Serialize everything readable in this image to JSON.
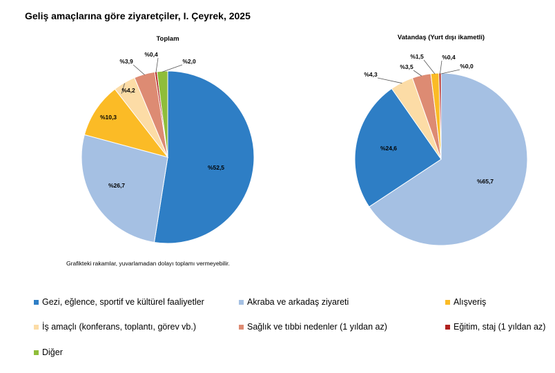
{
  "title": "Geliş amaçlarına göre ziyaretçiler, I. Çeyrek, 2025",
  "note": "Grafikteki rakamlar, yuvarlamadan dolayı toplamı vermeyebilir.",
  "colors": {
    "gezi": "#2e7ec5",
    "akraba": "#a5c0e3",
    "alisveris": "#fbbb26",
    "is": "#fcdca6",
    "saglik": "#dd8b73",
    "egitim": "#b0201d",
    "diger": "#8fbd3a"
  },
  "legend": [
    {
      "key": "gezi",
      "label": "Gezi, eğlence, sportif ve kültürel faaliyetler"
    },
    {
      "key": "akraba",
      "label": "Akraba ve arkadaş ziyareti"
    },
    {
      "key": "alisveris",
      "label": "Alışveriş"
    },
    {
      "key": "is",
      "label": "İş amaçlı (konferans, toplantı, görev vb.)"
    },
    {
      "key": "saglik",
      "label": "Sağlık ve tıbbi nedenler (1 yıldan az)"
    },
    {
      "key": "egitim",
      "label": "Eğitim, staj (1 yıldan az)"
    },
    {
      "key": "diger",
      "label": "Diğer"
    }
  ],
  "chart_data": [
    {
      "type": "pie",
      "title": "Toplam",
      "categories": [
        "Gezi, eğlence, sportif ve kültürel faaliyetler",
        "Akraba ve arkadaş ziyareti",
        "Alışveriş",
        "İş amaçlı (konferans, toplantı, görev vb.)",
        "Sağlık ve tıbbi nedenler (1 yıldan az)",
        "Eğitim, staj (1 yıldan az)",
        "Diğer"
      ],
      "keys": [
        "gezi",
        "akraba",
        "alisveris",
        "is",
        "saglik",
        "egitim",
        "diger"
      ],
      "values": [
        52.5,
        26.7,
        10.3,
        4.2,
        3.9,
        0.4,
        2.0
      ],
      "labels": [
        "%52,5",
        "%26,7",
        "%10,3",
        "%4,2",
        "%3,9",
        "%0,4",
        "%2,0"
      ]
    },
    {
      "type": "pie",
      "title": "Vatandaş (Yurt dışı ikametli)",
      "categories": [
        "Akraba ve arkadaş ziyareti",
        "Gezi, eğlence, sportif ve kültürel faaliyetler",
        "İş amaçlı (konferans, toplantı, görev vb.)",
        "Sağlık ve tıbbi nedenler (1 yıldan az)",
        "Alışveriş",
        "Eğitim, staj (1 yıldan az)",
        "Diğer"
      ],
      "keys": [
        "akraba",
        "gezi",
        "is",
        "saglik",
        "alisveris",
        "egitim",
        "diger"
      ],
      "values": [
        65.7,
        24.6,
        4.3,
        3.5,
        1.5,
        0.4,
        0.0
      ],
      "labels": [
        "%65,7",
        "%24,6",
        "%4,3",
        "%3,5",
        "%1,5",
        "%0,4",
        "%0,0"
      ]
    }
  ]
}
